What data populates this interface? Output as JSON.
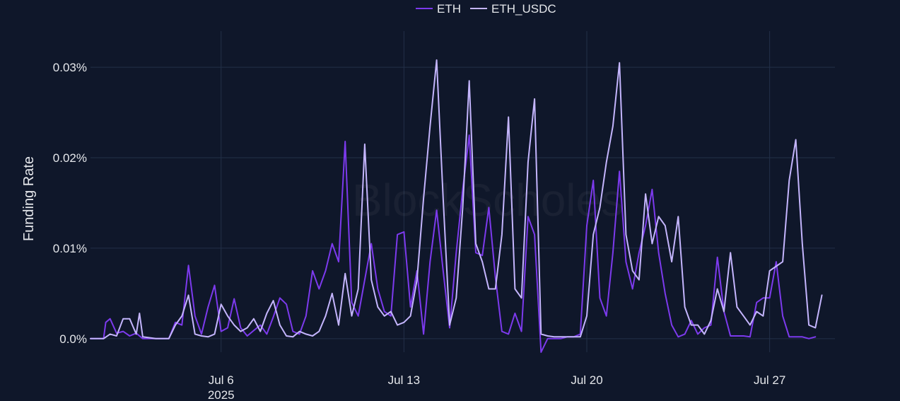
{
  "chart_data": {
    "type": "line",
    "title": "",
    "xlabel": "",
    "ylabel": "Funding Rate",
    "watermark": "BlockScholes",
    "x_range": [
      "2025-07-01",
      "2025-07-29T12:00"
    ],
    "ylim": [
      -0.0015,
      0.034
    ],
    "y_unit": "%",
    "grid": true,
    "legend_position": "top-center",
    "background_color": "#0f172a",
    "grid_color": "#233048",
    "x_ticks": [
      {
        "x": "2025-07-06",
        "label": "Jul 6",
        "sublabel": "2025"
      },
      {
        "x": "2025-07-13",
        "label": "Jul 13",
        "sublabel": ""
      },
      {
        "x": "2025-07-20",
        "label": "Jul 20",
        "sublabel": ""
      },
      {
        "x": "2025-07-27",
        "label": "Jul 27",
        "sublabel": ""
      }
    ],
    "y_ticks": [
      {
        "y": 0.0,
        "label": "0.0%"
      },
      {
        "y": 0.01,
        "label": "0.01%"
      },
      {
        "y": 0.02,
        "label": "0.02%"
      },
      {
        "y": 0.03,
        "label": "0.03%"
      }
    ],
    "series": [
      {
        "name": "ETH",
        "color": "#7c3aed",
        "points": [
          [
            "2025-07-01T00:00",
            0.0
          ],
          [
            "2025-07-01T12:00",
            0.0
          ],
          [
            "2025-07-01T14:00",
            0.0018
          ],
          [
            "2025-07-01T18:00",
            0.0022
          ],
          [
            "2025-07-02T00:00",
            0.0006
          ],
          [
            "2025-07-02T06:00",
            0.0008
          ],
          [
            "2025-07-02T12:00",
            0.0003
          ],
          [
            "2025-07-02T18:00",
            0.0006
          ],
          [
            "2025-07-03T00:00",
            0.0
          ],
          [
            "2025-07-03T12:00",
            0.0
          ],
          [
            "2025-07-04T00:00",
            0.0
          ],
          [
            "2025-07-04T06:00",
            0.0018
          ],
          [
            "2025-07-04T12:00",
            0.0015
          ],
          [
            "2025-07-04T18:00",
            0.0081
          ],
          [
            "2025-07-05T00:00",
            0.0025
          ],
          [
            "2025-07-05T06:00",
            0.0005
          ],
          [
            "2025-07-05T12:00",
            0.0035
          ],
          [
            "2025-07-05T18:00",
            0.0059
          ],
          [
            "2025-07-06T00:00",
            0.0008
          ],
          [
            "2025-07-06T06:00",
            0.0012
          ],
          [
            "2025-07-06T12:00",
            0.0044
          ],
          [
            "2025-07-06T18:00",
            0.0012
          ],
          [
            "2025-07-07T00:00",
            0.0003
          ],
          [
            "2025-07-07T12:00",
            0.0015
          ],
          [
            "2025-07-07T18:00",
            0.0005
          ],
          [
            "2025-07-08T00:00",
            0.0024
          ],
          [
            "2025-07-08T06:00",
            0.0045
          ],
          [
            "2025-07-08T12:00",
            0.0038
          ],
          [
            "2025-07-08T18:00",
            0.0008
          ],
          [
            "2025-07-09T00:00",
            0.0005
          ],
          [
            "2025-07-09T06:00",
            0.0025
          ],
          [
            "2025-07-09T12:00",
            0.0075
          ],
          [
            "2025-07-09T18:00",
            0.0055
          ],
          [
            "2025-07-10T00:00",
            0.0075
          ],
          [
            "2025-07-10T06:00",
            0.0105
          ],
          [
            "2025-07-10T12:00",
            0.0085
          ],
          [
            "2025-07-10T18:00",
            0.0218
          ],
          [
            "2025-07-11T00:00",
            0.004
          ],
          [
            "2025-07-11T06:00",
            0.0025
          ],
          [
            "2025-07-11T12:00",
            0.0065
          ],
          [
            "2025-07-11T18:00",
            0.0105
          ],
          [
            "2025-07-12T00:00",
            0.0055
          ],
          [
            "2025-07-12T06:00",
            0.003
          ],
          [
            "2025-07-12T12:00",
            0.0025
          ],
          [
            "2025-07-12T18:00",
            0.0115
          ],
          [
            "2025-07-13T00:00",
            0.0118
          ],
          [
            "2025-07-13T06:00",
            0.0035
          ],
          [
            "2025-07-13T12:00",
            0.0075
          ],
          [
            "2025-07-13T18:00",
            0.0005
          ],
          [
            "2025-07-14T00:00",
            0.0085
          ],
          [
            "2025-07-14T06:00",
            0.0142
          ],
          [
            "2025-07-14T12:00",
            0.0075
          ],
          [
            "2025-07-14T18:00",
            0.0012
          ],
          [
            "2025-07-15T00:00",
            0.0095
          ],
          [
            "2025-07-15T06:00",
            0.0165
          ],
          [
            "2025-07-15T12:00",
            0.0225
          ],
          [
            "2025-07-15T18:00",
            0.0095
          ],
          [
            "2025-07-16T00:00",
            0.0092
          ],
          [
            "2025-07-16T06:00",
            0.0145
          ],
          [
            "2025-07-16T12:00",
            0.0068
          ],
          [
            "2025-07-16T18:00",
            0.0008
          ],
          [
            "2025-07-17T00:00",
            0.0005
          ],
          [
            "2025-07-17T06:00",
            0.0028
          ],
          [
            "2025-07-17T12:00",
            0.0008
          ],
          [
            "2025-07-17T18:00",
            0.0135
          ],
          [
            "2025-07-18T00:00",
            0.0115
          ],
          [
            "2025-07-18T06:00",
            -0.0015
          ],
          [
            "2025-07-18T12:00",
            0.0
          ],
          [
            "2025-07-18T18:00",
            0.0
          ],
          [
            "2025-07-19T00:00",
            0.0
          ],
          [
            "2025-07-19T06:00",
            0.0002
          ],
          [
            "2025-07-19T12:00",
            0.0002
          ],
          [
            "2025-07-19T18:00",
            0.0005
          ],
          [
            "2025-07-20T00:00",
            0.0125
          ],
          [
            "2025-07-20T06:00",
            0.0175
          ],
          [
            "2025-07-20T12:00",
            0.0045
          ],
          [
            "2025-07-20T18:00",
            0.0025
          ],
          [
            "2025-07-21T00:00",
            0.0095
          ],
          [
            "2025-07-21T06:00",
            0.0185
          ],
          [
            "2025-07-21T12:00",
            0.0085
          ],
          [
            "2025-07-21T18:00",
            0.0055
          ],
          [
            "2025-07-22T00:00",
            0.0095
          ],
          [
            "2025-07-22T06:00",
            0.0125
          ],
          [
            "2025-07-22T12:00",
            0.0165
          ],
          [
            "2025-07-22T18:00",
            0.0095
          ],
          [
            "2025-07-23T00:00",
            0.005
          ],
          [
            "2025-07-23T06:00",
            0.0015
          ],
          [
            "2025-07-23T12:00",
            0.0002
          ],
          [
            "2025-07-23T18:00",
            0.0005
          ],
          [
            "2025-07-24T00:00",
            0.002
          ],
          [
            "2025-07-24T06:00",
            0.0005
          ],
          [
            "2025-07-24T12:00",
            0.0012
          ],
          [
            "2025-07-24T18:00",
            0.0015
          ],
          [
            "2025-07-25T00:00",
            0.009
          ],
          [
            "2025-07-25T06:00",
            0.003
          ],
          [
            "2025-07-25T12:00",
            0.0003
          ],
          [
            "2025-07-25T18:00",
            0.0003
          ],
          [
            "2025-07-26T00:00",
            0.0003
          ],
          [
            "2025-07-26T06:00",
            0.0002
          ],
          [
            "2025-07-26T12:00",
            0.004
          ],
          [
            "2025-07-26T18:00",
            0.0045
          ],
          [
            "2025-07-27T00:00",
            0.0045
          ],
          [
            "2025-07-27T06:00",
            0.0085
          ],
          [
            "2025-07-27T12:00",
            0.0025
          ],
          [
            "2025-07-27T18:00",
            0.0002
          ],
          [
            "2025-07-28T00:00",
            0.0002
          ],
          [
            "2025-07-28T06:00",
            0.0002
          ],
          [
            "2025-07-28T12:00",
            0.0
          ],
          [
            "2025-07-28T18:00",
            0.0002
          ]
        ]
      },
      {
        "name": "ETH_USDC",
        "color": "#c4b5fd",
        "points": [
          [
            "2025-07-01T00:00",
            0.0
          ],
          [
            "2025-07-01T12:00",
            0.0
          ],
          [
            "2025-07-01T18:00",
            0.0005
          ],
          [
            "2025-07-02T00:00",
            0.0003
          ],
          [
            "2025-07-02T06:00",
            0.0022
          ],
          [
            "2025-07-02T12:00",
            0.0022
          ],
          [
            "2025-07-02T18:00",
            0.0005
          ],
          [
            "2025-07-02T21:00",
            0.0028
          ],
          [
            "2025-07-03T00:00",
            0.0002
          ],
          [
            "2025-07-03T12:00",
            0.0
          ],
          [
            "2025-07-04T00:00",
            0.0
          ],
          [
            "2025-07-04T06:00",
            0.0015
          ],
          [
            "2025-07-04T12:00",
            0.0025
          ],
          [
            "2025-07-04T18:00",
            0.0048
          ],
          [
            "2025-07-05T00:00",
            0.0005
          ],
          [
            "2025-07-05T06:00",
            0.0003
          ],
          [
            "2025-07-05T12:00",
            0.0002
          ],
          [
            "2025-07-05T18:00",
            0.0005
          ],
          [
            "2025-07-06T00:00",
            0.0038
          ],
          [
            "2025-07-06T06:00",
            0.0025
          ],
          [
            "2025-07-06T12:00",
            0.0015
          ],
          [
            "2025-07-06T18:00",
            0.0008
          ],
          [
            "2025-07-07T00:00",
            0.0012
          ],
          [
            "2025-07-07T06:00",
            0.0022
          ],
          [
            "2025-07-07T12:00",
            0.0008
          ],
          [
            "2025-07-07T18:00",
            0.0028
          ],
          [
            "2025-07-08T00:00",
            0.0042
          ],
          [
            "2025-07-08T06:00",
            0.0015
          ],
          [
            "2025-07-08T12:00",
            0.0003
          ],
          [
            "2025-07-08T18:00",
            0.0002
          ],
          [
            "2025-07-09T00:00",
            0.0008
          ],
          [
            "2025-07-09T06:00",
            0.0005
          ],
          [
            "2025-07-09T12:00",
            0.0003
          ],
          [
            "2025-07-09T18:00",
            0.0008
          ],
          [
            "2025-07-10T00:00",
            0.0025
          ],
          [
            "2025-07-10T06:00",
            0.005
          ],
          [
            "2025-07-10T12:00",
            0.0015
          ],
          [
            "2025-07-10T18:00",
            0.0072
          ],
          [
            "2025-07-11T00:00",
            0.0025
          ],
          [
            "2025-07-11T06:00",
            0.0055
          ],
          [
            "2025-07-11T12:00",
            0.0215
          ],
          [
            "2025-07-11T18:00",
            0.0065
          ],
          [
            "2025-07-12T00:00",
            0.0035
          ],
          [
            "2025-07-12T06:00",
            0.0025
          ],
          [
            "2025-07-12T12:00",
            0.003
          ],
          [
            "2025-07-12T18:00",
            0.0015
          ],
          [
            "2025-07-13T00:00",
            0.0018
          ],
          [
            "2025-07-13T06:00",
            0.0025
          ],
          [
            "2025-07-13T12:00",
            0.0065
          ],
          [
            "2025-07-13T18:00",
            0.0155
          ],
          [
            "2025-07-14T00:00",
            0.0235
          ],
          [
            "2025-07-14T06:00",
            0.0308
          ],
          [
            "2025-07-14T12:00",
            0.0155
          ],
          [
            "2025-07-14T18:00",
            0.0015
          ],
          [
            "2025-07-15T00:00",
            0.0045
          ],
          [
            "2025-07-15T06:00",
            0.0145
          ],
          [
            "2025-07-15T12:00",
            0.0285
          ],
          [
            "2025-07-15T18:00",
            0.0105
          ],
          [
            "2025-07-16T00:00",
            0.0085
          ],
          [
            "2025-07-16T06:00",
            0.0055
          ],
          [
            "2025-07-16T12:00",
            0.0055
          ],
          [
            "2025-07-16T18:00",
            0.0115
          ],
          [
            "2025-07-17T00:00",
            0.0245
          ],
          [
            "2025-07-17T06:00",
            0.0055
          ],
          [
            "2025-07-17T12:00",
            0.0045
          ],
          [
            "2025-07-17T18:00",
            0.0195
          ],
          [
            "2025-07-18T00:00",
            0.0265
          ],
          [
            "2025-07-18T06:00",
            0.0005
          ],
          [
            "2025-07-18T12:00",
            0.0003
          ],
          [
            "2025-07-18T18:00",
            0.0002
          ],
          [
            "2025-07-19T00:00",
            0.0002
          ],
          [
            "2025-07-19T06:00",
            0.0002
          ],
          [
            "2025-07-19T12:00",
            0.0002
          ],
          [
            "2025-07-19T18:00",
            0.0002
          ],
          [
            "2025-07-20T00:00",
            0.0025
          ],
          [
            "2025-07-20T06:00",
            0.0115
          ],
          [
            "2025-07-20T12:00",
            0.0145
          ],
          [
            "2025-07-20T18:00",
            0.0195
          ],
          [
            "2025-07-21T00:00",
            0.0235
          ],
          [
            "2025-07-21T06:00",
            0.0305
          ],
          [
            "2025-07-21T12:00",
            0.0115
          ],
          [
            "2025-07-21T18:00",
            0.0075
          ],
          [
            "2025-07-22T00:00",
            0.0065
          ],
          [
            "2025-07-22T06:00",
            0.016
          ],
          [
            "2025-07-22T12:00",
            0.0105
          ],
          [
            "2025-07-22T18:00",
            0.0135
          ],
          [
            "2025-07-23T00:00",
            0.0125
          ],
          [
            "2025-07-23T06:00",
            0.0085
          ],
          [
            "2025-07-23T12:00",
            0.0135
          ],
          [
            "2025-07-23T18:00",
            0.0035
          ],
          [
            "2025-07-24T00:00",
            0.0015
          ],
          [
            "2025-07-24T06:00",
            0.0015
          ],
          [
            "2025-07-24T12:00",
            0.0005
          ],
          [
            "2025-07-24T18:00",
            0.002
          ],
          [
            "2025-07-25T00:00",
            0.0055
          ],
          [
            "2025-07-25T06:00",
            0.003
          ],
          [
            "2025-07-25T12:00",
            0.0095
          ],
          [
            "2025-07-25T18:00",
            0.0035
          ],
          [
            "2025-07-26T00:00",
            0.0025
          ],
          [
            "2025-07-26T06:00",
            0.0015
          ],
          [
            "2025-07-26T12:00",
            0.003
          ],
          [
            "2025-07-26T18:00",
            0.0025
          ],
          [
            "2025-07-27T00:00",
            0.0075
          ],
          [
            "2025-07-27T06:00",
            0.008
          ],
          [
            "2025-07-27T12:00",
            0.0085
          ],
          [
            "2025-07-27T18:00",
            0.0175
          ],
          [
            "2025-07-28T00:00",
            0.022
          ],
          [
            "2025-07-28T06:00",
            0.0105
          ],
          [
            "2025-07-28T12:00",
            0.0015
          ],
          [
            "2025-07-28T18:00",
            0.0012
          ],
          [
            "2025-07-29T00:00",
            0.0048
          ]
        ]
      }
    ]
  }
}
